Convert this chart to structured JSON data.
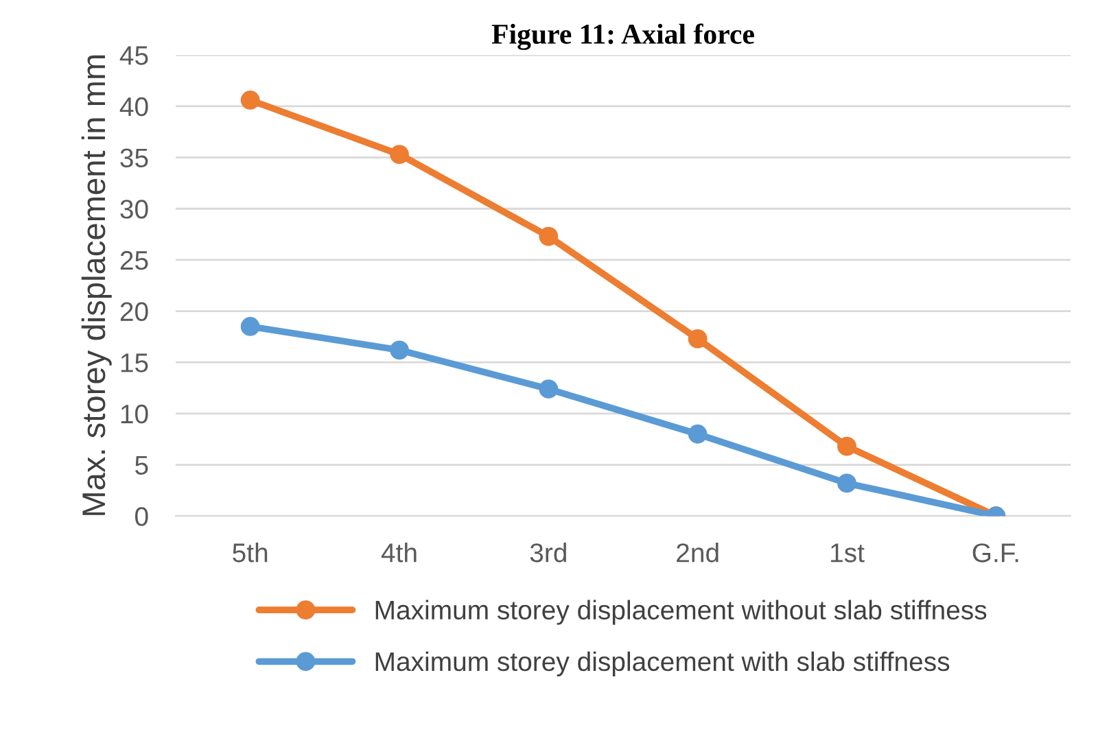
{
  "chart_data": {
    "type": "line",
    "title": "Figure 11: Axial force",
    "ylabel": "Max. storey displacement in mm",
    "categories": [
      "5th",
      "4th",
      "3rd",
      "2nd",
      "1st",
      "G.F."
    ],
    "series": [
      {
        "name": "Maximum storey displacement without slab stiffness",
        "color": "#ed7d31",
        "values": [
          40.6,
          35.3,
          27.3,
          17.3,
          6.8,
          0
        ]
      },
      {
        "name": "Maximum storey displacement with slab stiffness",
        "color": "#5b9bd5",
        "values": [
          18.5,
          16.2,
          12.4,
          8.0,
          3.2,
          0
        ]
      }
    ],
    "ylim": [
      0,
      45
    ],
    "yticks": [
      0,
      5,
      10,
      15,
      20,
      25,
      30,
      35,
      40,
      45
    ],
    "grid": "y",
    "legend": "bottom",
    "marker": "circle",
    "line_style": "solid"
  }
}
